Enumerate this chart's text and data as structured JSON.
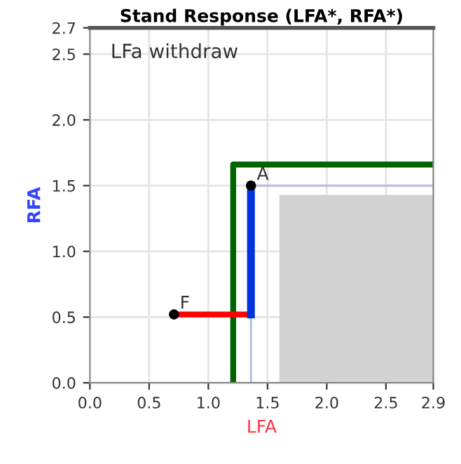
{
  "chart_data": {
    "type": "line",
    "title": "Stand Response (LFA*, RFA*)",
    "xlabel": "LFA",
    "ylabel": "RFA",
    "series": [
      {
        "type": "area",
        "color": "#d3d3d3",
        "x": [
          1.6,
          2.9
        ],
        "values": [
          1.43,
          1.43
        ]
      },
      {
        "color": "#b0bcd8",
        "x": [
          1.36,
          2.9
        ],
        "values": [
          1.5,
          1.5
        ]
      },
      {
        "color": "#b0bcd8",
        "x": [
          1.36,
          1.36
        ],
        "values": [
          0,
          0.52
        ]
      },
      {
        "color": "#006400",
        "x": [
          1.21,
          1.21,
          2.9
        ],
        "values": [
          0,
          1.66,
          1.66
        ]
      },
      {
        "color": "#ff0000",
        "x": [
          0.71,
          1.36
        ],
        "values": [
          0.52,
          0.52
        ]
      },
      {
        "color": "#0033dd",
        "x": [
          1.36,
          1.36
        ],
        "values": [
          0.52,
          1.5
        ]
      },
      {
        "type": "scatter",
        "color": "#000000",
        "marker": "circle",
        "x": [
          0.71,
          1.36
        ],
        "values": [
          0.52,
          1.5
        ]
      }
    ],
    "annotations": [
      "LFa withdraw",
      {
        "text": "F",
        "x": 0.71,
        "y": 0.52
      },
      {
        "text": "A",
        "x": 1.36,
        "y": 1.5
      }
    ],
    "xlim": [
      0,
      2.9
    ],
    "xticks": [
      {
        "value": 0,
        "label": "0.0"
      },
      0.5,
      {
        "value": 1,
        "label": "1.0"
      },
      1.5,
      {
        "value": 2,
        "label": "2.0"
      },
      2.5,
      2.9
    ],
    "ylim": [
      0,
      2.7
    ],
    "yticks": [
      {
        "value": 0,
        "label": "0.0"
      },
      0.5,
      {
        "value": 1,
        "label": "1.0"
      },
      1.5,
      {
        "value": 2,
        "label": "2.0"
      },
      2.5,
      2.7
    ],
    "grid": true
  }
}
